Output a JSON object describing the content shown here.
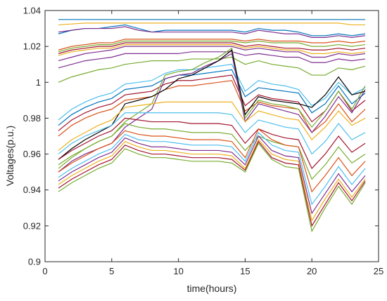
{
  "chart_data": {
    "type": "line",
    "title": "",
    "xlabel": "time(hours)",
    "ylabel": "Voltages(p.u.)",
    "xlim": [
      0,
      25
    ],
    "ylim": [
      0.9,
      1.04
    ],
    "grid": false,
    "legend": "none",
    "x_ticks": [
      "0",
      "5",
      "10",
      "15",
      "20",
      "25"
    ],
    "y_ticks": [
      "0.9",
      "0.92",
      "0.94",
      "0.96",
      "0.98",
      "1",
      "1.02",
      "1.04"
    ],
    "x": [
      1,
      2,
      3,
      4,
      5,
      6,
      7,
      8,
      9,
      10,
      11,
      12,
      13,
      14,
      15,
      16,
      17,
      18,
      19,
      20,
      21,
      22,
      23,
      24
    ],
    "series": [
      {
        "color": "#0072bd",
        "values": [
          1.035,
          1.035,
          1.035,
          1.035,
          1.035,
          1.035,
          1.035,
          1.035,
          1.035,
          1.035,
          1.035,
          1.035,
          1.035,
          1.035,
          1.035,
          1.035,
          1.035,
          1.035,
          1.035,
          1.035,
          1.035,
          1.035,
          1.035,
          1.035
        ]
      },
      {
        "color": "#edb120",
        "values": [
          1.032,
          1.0325,
          1.033,
          1.033,
          1.033,
          1.033,
          1.033,
          1.033,
          1.033,
          1.033,
          1.033,
          1.033,
          1.033,
          1.033,
          1.033,
          1.033,
          1.033,
          1.033,
          1.033,
          1.033,
          1.033,
          1.033,
          1.032,
          1.032
        ]
      },
      {
        "color": "#0072bd",
        "values": [
          1.027,
          1.029,
          1.03,
          1.03,
          1.031,
          1.032,
          1.03,
          1.028,
          1.029,
          1.029,
          1.029,
          1.029,
          1.029,
          1.029,
          1.028,
          1.03,
          1.029,
          1.029,
          1.028,
          1.026,
          1.026,
          1.027,
          1.026,
          1.027
        ]
      },
      {
        "color": "#7e2f8e",
        "values": [
          1.028,
          1.029,
          1.03,
          1.03,
          1.03,
          1.031,
          1.029,
          1.028,
          1.028,
          1.028,
          1.028,
          1.028,
          1.028,
          1.028,
          1.027,
          1.029,
          1.028,
          1.027,
          1.027,
          1.025,
          1.025,
          1.026,
          1.025,
          1.026
        ]
      },
      {
        "color": "#d95319",
        "values": [
          1.018,
          1.02,
          1.021,
          1.022,
          1.022,
          1.024,
          1.024,
          1.024,
          1.024,
          1.024,
          1.024,
          1.024,
          1.024,
          1.024,
          1.023,
          1.024,
          1.023,
          1.023,
          1.023,
          1.022,
          1.022,
          1.023,
          1.022,
          1.023
        ]
      },
      {
        "color": "#77ac30",
        "values": [
          1.017,
          1.019,
          1.02,
          1.021,
          1.021,
          1.023,
          1.023,
          1.023,
          1.023,
          1.023,
          1.023,
          1.023,
          1.023,
          1.023,
          1.022,
          1.023,
          1.022,
          1.022,
          1.022,
          1.02,
          1.02,
          1.021,
          1.02,
          1.021
        ]
      },
      {
        "color": "#a2142f",
        "values": [
          1.016,
          1.018,
          1.019,
          1.02,
          1.02,
          1.022,
          1.022,
          1.022,
          1.022,
          1.022,
          1.022,
          1.022,
          1.022,
          1.022,
          1.02,
          1.021,
          1.02,
          1.019,
          1.019,
          1.018,
          1.018,
          1.019,
          1.018,
          1.019
        ]
      },
      {
        "color": "#edb120",
        "values": [
          1.015,
          1.017,
          1.018,
          1.019,
          1.019,
          1.021,
          1.021,
          1.021,
          1.021,
          1.021,
          1.021,
          1.021,
          1.021,
          1.021,
          1.019,
          1.02,
          1.019,
          1.018,
          1.018,
          1.016,
          1.016,
          1.017,
          1.016,
          1.017
        ]
      },
      {
        "color": "#7e2f8e",
        "values": [
          1.012,
          1.014,
          1.016,
          1.017,
          1.018,
          1.02,
          1.02,
          1.02,
          1.02,
          1.02,
          1.02,
          1.02,
          1.02,
          1.02,
          1.018,
          1.019,
          1.018,
          1.017,
          1.017,
          1.014,
          1.014,
          1.016,
          1.015,
          1.016
        ]
      },
      {
        "color": "#7e2f8e",
        "values": [
          1.008,
          1.01,
          1.012,
          1.013,
          1.014,
          1.016,
          1.016,
          1.016,
          1.016,
          1.016,
          1.017,
          1.017,
          1.017,
          1.017,
          1.015,
          1.016,
          1.015,
          1.014,
          1.014,
          1.011,
          1.011,
          1.013,
          1.012,
          1.013
        ]
      },
      {
        "color": "#77ac30",
        "values": [
          1.0,
          1.003,
          1.005,
          1.007,
          1.008,
          1.01,
          1.011,
          1.012,
          1.012,
          1.012,
          1.013,
          1.013,
          1.013,
          1.014,
          1.01,
          1.012,
          1.01,
          1.009,
          1.008,
          1.004,
          1.004,
          1.008,
          1.007,
          1.009
        ]
      },
      {
        "color": "#4dbeee",
        "values": [
          0.979,
          0.985,
          0.989,
          0.992,
          0.994,
          0.999,
          1.0,
          1.001,
          1.005,
          1.007,
          1.007,
          1.008,
          1.009,
          1.01,
          0.995,
          1.001,
          0.999,
          0.998,
          0.996,
          0.987,
          0.991,
          1.0,
          0.993,
          0.997
        ]
      },
      {
        "color": "#0072bd",
        "values": [
          0.976,
          0.982,
          0.986,
          0.989,
          0.991,
          0.996,
          0.997,
          0.998,
          1.002,
          1.004,
          1.004,
          1.005,
          1.006,
          1.007,
          0.992,
          0.997,
          0.996,
          0.995,
          0.994,
          0.983,
          0.988,
          0.998,
          0.988,
          0.994
        ]
      },
      {
        "color": "#a2142f",
        "values": [
          0.973,
          0.979,
          0.983,
          0.986,
          0.988,
          0.993,
          0.994,
          0.995,
          0.999,
          1.001,
          1.001,
          1.002,
          1.003,
          1.004,
          0.987,
          0.993,
          0.991,
          0.99,
          0.989,
          0.978,
          0.984,
          0.995,
          0.984,
          0.99
        ]
      },
      {
        "color": "#d95319",
        "values": [
          0.97,
          0.976,
          0.98,
          0.983,
          0.985,
          0.99,
          0.991,
          0.992,
          0.996,
          0.998,
          0.998,
          0.999,
          1.0,
          1.001,
          0.984,
          0.989,
          0.987,
          0.986,
          0.985,
          0.972,
          0.978,
          0.988,
          0.978,
          0.985
        ]
      },
      {
        "color": "#77ac30",
        "values": [
          0.952,
          0.958,
          0.963,
          0.967,
          0.97,
          0.978,
          0.983,
          0.988,
          1.004,
          1.006,
          1.007,
          1.011,
          1.014,
          1.019,
          0.98,
          0.99,
          0.988,
          0.987,
          0.985,
          0.975,
          0.984,
          0.995,
          0.985,
          0.998
        ]
      },
      {
        "color": "#7e2f8e",
        "values": [
          0.95,
          0.956,
          0.96,
          0.963,
          0.966,
          0.975,
          0.98,
          0.985,
          1.002,
          1.004,
          1.005,
          1.009,
          1.012,
          1.016,
          0.978,
          0.988,
          0.986,
          0.984,
          0.982,
          0.972,
          0.981,
          0.992,
          0.983,
          0.996
        ]
      },
      {
        "color": "#000000",
        "values": [
          0.957,
          0.963,
          0.968,
          0.972,
          0.976,
          0.988,
          0.99,
          0.992,
          0.996,
          1.002,
          1.004,
          1.008,
          1.012,
          1.018,
          0.982,
          0.992,
          0.99,
          0.989,
          0.988,
          0.986,
          0.993,
          1.003,
          0.993,
          0.995
        ]
      },
      {
        "color": "#edb120",
        "values": [
          0.962,
          0.968,
          0.972,
          0.976,
          0.979,
          0.986,
          0.987,
          0.988,
          0.989,
          0.989,
          0.989,
          0.989,
          0.989,
          0.989,
          0.978,
          0.984,
          0.982,
          0.98,
          0.979,
          0.968,
          0.975,
          0.984,
          0.976,
          0.98
        ]
      },
      {
        "color": "#4dbeee",
        "values": [
          0.96,
          0.966,
          0.97,
          0.973,
          0.976,
          0.983,
          0.983,
          0.983,
          0.983,
          0.983,
          0.983,
          0.983,
          0.983,
          0.982,
          0.972,
          0.979,
          0.977,
          0.975,
          0.974,
          0.96,
          0.967,
          0.977,
          0.968,
          0.972
        ]
      },
      {
        "color": "#a2142f",
        "values": [
          0.957,
          0.962,
          0.966,
          0.97,
          0.973,
          0.98,
          0.979,
          0.978,
          0.978,
          0.978,
          0.977,
          0.977,
          0.977,
          0.976,
          0.966,
          0.974,
          0.971,
          0.969,
          0.968,
          0.952,
          0.96,
          0.97,
          0.961,
          0.966
        ]
      },
      {
        "color": "#77ac30",
        "values": [
          0.954,
          0.959,
          0.963,
          0.967,
          0.97,
          0.977,
          0.975,
          0.974,
          0.974,
          0.973,
          0.972,
          0.972,
          0.972,
          0.971,
          0.962,
          0.97,
          0.967,
          0.965,
          0.964,
          0.946,
          0.954,
          0.964,
          0.955,
          0.96
        ]
      },
      {
        "color": "#d95319",
        "values": [
          0.95,
          0.955,
          0.959,
          0.963,
          0.966,
          0.973,
          0.971,
          0.97,
          0.97,
          0.969,
          0.968,
          0.968,
          0.968,
          0.967,
          0.958,
          0.974,
          0.968,
          0.965,
          0.964,
          0.939,
          0.948,
          0.958,
          0.948,
          0.956
        ]
      },
      {
        "color": "#4dbeee",
        "values": [
          0.947,
          0.952,
          0.956,
          0.96,
          0.963,
          0.971,
          0.968,
          0.967,
          0.967,
          0.966,
          0.965,
          0.965,
          0.965,
          0.964,
          0.956,
          0.972,
          0.965,
          0.962,
          0.961,
          0.932,
          0.942,
          0.953,
          0.943,
          0.952
        ]
      },
      {
        "color": "#7e2f8e",
        "values": [
          0.945,
          0.95,
          0.954,
          0.958,
          0.961,
          0.969,
          0.966,
          0.964,
          0.964,
          0.963,
          0.962,
          0.962,
          0.962,
          0.961,
          0.954,
          0.97,
          0.962,
          0.959,
          0.958,
          0.927,
          0.938,
          0.949,
          0.939,
          0.948
        ]
      },
      {
        "color": "#edb120",
        "values": [
          0.943,
          0.948,
          0.952,
          0.956,
          0.959,
          0.967,
          0.964,
          0.962,
          0.962,
          0.961,
          0.96,
          0.96,
          0.96,
          0.959,
          0.952,
          0.968,
          0.96,
          0.957,
          0.956,
          0.923,
          0.935,
          0.946,
          0.936,
          0.946
        ]
      },
      {
        "color": "#a2142f",
        "values": [
          0.941,
          0.946,
          0.95,
          0.954,
          0.957,
          0.965,
          0.962,
          0.96,
          0.96,
          0.959,
          0.958,
          0.958,
          0.958,
          0.957,
          0.951,
          0.967,
          0.958,
          0.955,
          0.954,
          0.92,
          0.932,
          0.944,
          0.934,
          0.945
        ]
      },
      {
        "color": "#77ac30",
        "values": [
          0.939,
          0.944,
          0.948,
          0.952,
          0.955,
          0.963,
          0.96,
          0.958,
          0.958,
          0.957,
          0.956,
          0.956,
          0.956,
          0.955,
          0.95,
          0.966,
          0.957,
          0.953,
          0.952,
          0.917,
          0.93,
          0.942,
          0.932,
          0.944
        ]
      }
    ]
  }
}
